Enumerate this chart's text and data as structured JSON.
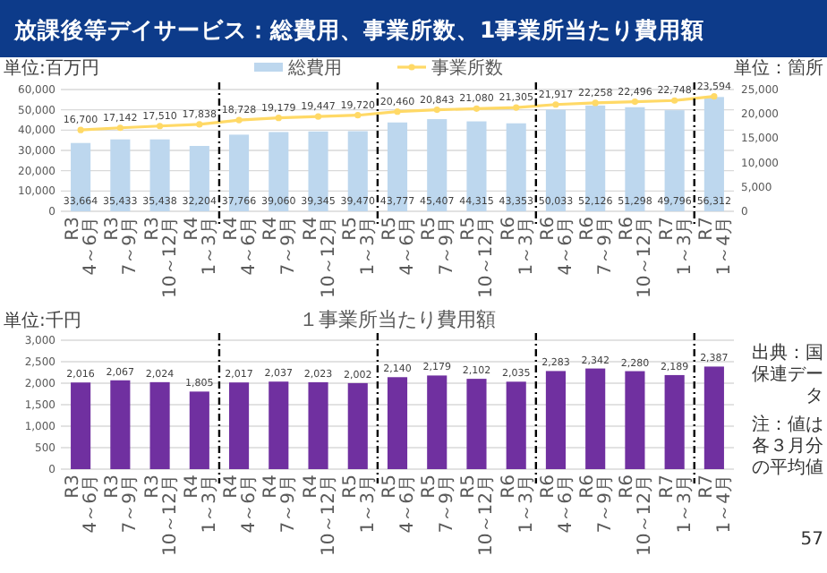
{
  "chart_data": [
    {
      "type": "bar",
      "title": "放課後等デイサービス：総費用、事業所数、1事業所当たり費用額",
      "ylabel": "単位:百万円",
      "y2label": "単位：箇所",
      "categories": [
        "R3\n4～6月",
        "R3\n7～9月",
        "R3\n10～12月",
        "R4\n1～3月",
        "R4\n4～6月",
        "R4\n7～9月",
        "R4\n10～12月",
        "R5\n1～3月",
        "R5\n4～6月",
        "R5\n7～9月",
        "R5\n10～12月",
        "R6\n1～3月",
        "R6\n4～6月",
        "R6\n7～9月",
        "R6\n10～12月",
        "R7\n1～3月",
        "R7\n1～4月"
      ],
      "series": [
        {
          "name": "総費用",
          "color": "#bdd7ee",
          "values": [
            33664,
            35433,
            35438,
            32204,
            37766,
            39060,
            39345,
            39470,
            43777,
            45407,
            44315,
            43353,
            50033,
            52126,
            51298,
            49796,
            56312
          ],
          "value_labels": [
            "33,664",
            "35,433",
            "35,438",
            "32,204",
            "37,766",
            "39,060",
            "39,345",
            "39,470",
            "43,777",
            "45,407",
            "44,315",
            "43,353",
            "50,033",
            "52,126",
            "51,298",
            "49,796",
            "56,312"
          ]
        },
        {
          "name": "事業所数",
          "type": "line",
          "axis": "y2",
          "color": "#ffd966",
          "values": [
            16700,
            17142,
            17510,
            17838,
            18728,
            19179,
            19447,
            19720,
            20460,
            20843,
            21080,
            21305,
            21917,
            22258,
            22496,
            22748,
            23594
          ],
          "value_labels": [
            "16,700",
            "17,142",
            "17,510",
            "17,838",
            "18,728",
            "19,179",
            "19,447",
            "19,720",
            "20,460",
            "20,843",
            "21,080",
            "21,305",
            "21,917",
            "22,258",
            "22,496",
            "22,748",
            "23,594"
          ]
        }
      ],
      "marker": "circle",
      "ylim": [
        0,
        60000
      ],
      "yticks": [
        {
          "value": 0,
          "label": "0"
        },
        {
          "value": 10000,
          "label": "10,000"
        },
        {
          "value": 20000,
          "label": "20,000"
        },
        {
          "value": 30000,
          "label": "30,000"
        },
        {
          "value": 40000,
          "label": "40,000"
        },
        {
          "value": 50000,
          "label": "50,000"
        },
        {
          "value": 60000,
          "label": "60,000"
        }
      ],
      "y2lim": [
        0,
        25000
      ],
      "y2ticks": [
        {
          "value": 0,
          "label": "0"
        },
        {
          "value": 5000,
          "label": "5,000"
        },
        {
          "value": 10000,
          "label": "10,000"
        },
        {
          "value": 15000,
          "label": "15,000"
        },
        {
          "value": 20000,
          "label": "20,000"
        },
        {
          "value": 25000,
          "label": "25,000"
        }
      ],
      "grid": "y",
      "legend": "top"
    },
    {
      "type": "bar",
      "title": "１事業所当たり費用額",
      "ylabel": "単位:千円",
      "categories": [
        "R3\n4～6月",
        "R3\n7～9月",
        "R3\n10～12月",
        "R4\n1～3月",
        "R4\n4～6月",
        "R4\n7～9月",
        "R4\n10～12月",
        "R5\n1～3月",
        "R5\n4～6月",
        "R5\n7～9月",
        "R5\n10～12月",
        "R6\n1～3月",
        "R6\n4～6月",
        "R6\n7～9月",
        "R6\n10～12月",
        "R7\n1～3月",
        "R7\n1～4月"
      ],
      "series": [
        {
          "color": "#7030a0",
          "values": [
            2016,
            2067,
            2024,
            1805,
            2017,
            2037,
            2023,
            2002,
            2140,
            2179,
            2102,
            2035,
            2283,
            2342,
            2280,
            2189,
            2387
          ],
          "value_labels": [
            "2,016",
            "2,067",
            "2,024",
            "1,805",
            "2,017",
            "2,037",
            "2,023",
            "2,002",
            "2,140",
            "2,179",
            "2,102",
            "2,035",
            "2,283",
            "2,342",
            "2,280",
            "2,189",
            "2,387"
          ]
        }
      ],
      "ylim": [
        0,
        3000
      ],
      "yticks": [
        {
          "value": 0,
          "label": "0"
        },
        {
          "value": 500,
          "label": "500"
        },
        {
          "value": 1000,
          "label": "1,000"
        },
        {
          "value": 1500,
          "label": "1,500"
        },
        {
          "value": 2000,
          "label": "2,000"
        },
        {
          "value": 2500,
          "label": "2,500"
        },
        {
          "value": 3000,
          "label": "3,000"
        }
      ],
      "grid": "y",
      "annotations": [
        "出典：国保連データ",
        "注：値は各３月分の平均値",
        "57"
      ]
    }
  ]
}
